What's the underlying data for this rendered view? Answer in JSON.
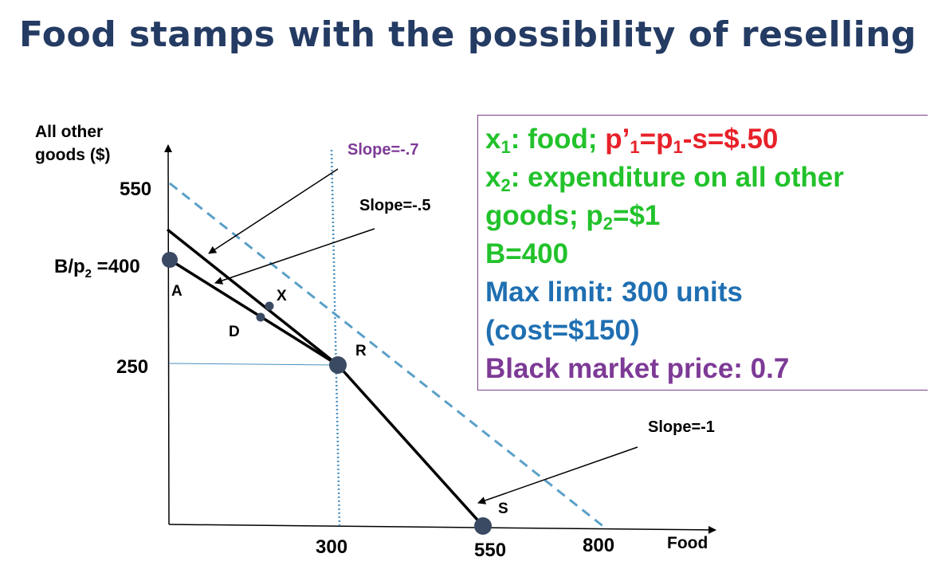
{
  "title": "Food stamps with the possibility of reselling",
  "axes": {
    "y_label_line1": "All other",
    "y_label_line2": "goods ($)",
    "x_label": "Food"
  },
  "ticks": {
    "y_550": "550",
    "y_400_main": "B/p",
    "y_400_sub": "2",
    "y_400_suffix": " =400",
    "y_250": "250",
    "x_300": "300",
    "x_550": "550",
    "x_800": "800"
  },
  "points": {
    "A": "A",
    "D": "D",
    "X": "X",
    "R": "R",
    "S": "S"
  },
  "annotations": {
    "slope_07": "Slope=-.7",
    "slope_05": "Slope=-.5",
    "slope_1": "Slope=-1"
  },
  "infobox": {
    "l1_green_a": "x",
    "l1_green_sub": "1",
    "l1_green_b": ": food; ",
    "l1_red_a": "p’",
    "l1_red_sub": "1",
    "l1_red_b": "=p",
    "l1_red_sub2": "1",
    "l1_red_c": "-s=$.50",
    "l2_a": "x",
    "l2_sub": "2",
    "l2_b": ": expenditure on all other",
    "l3_a": "goods; p",
    "l3_sub": "2",
    "l3_b": "=$1",
    "l4": "B=400",
    "l5": "Max limit: 300 units",
    "l6": "(cost=$150)",
    "l7": "Black market price: 0.7"
  },
  "colors": {
    "title": "#243b63",
    "green": "#22c22b",
    "red": "#e8212a",
    "blue": "#1f6fb2",
    "purple": "#7d3a96",
    "dashed_line": "#5aa0c8",
    "point": "#3b4a63"
  }
}
